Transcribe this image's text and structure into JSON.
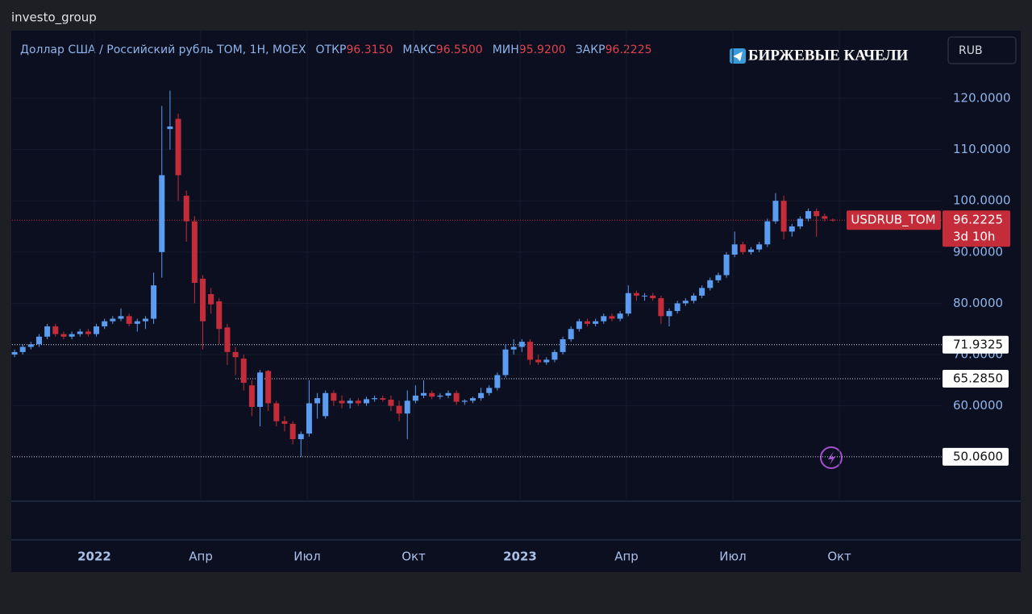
{
  "header": "investo_group",
  "chart_data": {
    "type": "candlestick",
    "title": "Доллар США / Российский рубль TOM, 1H, MOEX",
    "legend_values": {
      "labels": [
        "ОТКР",
        "МАКС",
        "МИН",
        "ЗАКР"
      ],
      "values": [
        96.315,
        96.55,
        95.92,
        96.2225
      ],
      "value_labels": [
        "96.3150",
        "96.5500",
        "95.9200",
        "96.2225"
      ]
    },
    "watermark": "БИРЖЕВЫЕ КАЧЕЛИ",
    "currency": "RUB",
    "up_color": "#5b9cf0",
    "down_color": "#c42c3a",
    "grid": true,
    "ohlc": [
      [
        70,
        71,
        69.5,
        70.5
      ],
      [
        70.5,
        72,
        70,
        71.5
      ],
      [
        71.5,
        72.5,
        71,
        72
      ],
      [
        72,
        74,
        71.5,
        73.5
      ],
      [
        73.5,
        76,
        73,
        75.5
      ],
      [
        75.5,
        76,
        73.5,
        74
      ],
      [
        74,
        74.5,
        73,
        73.5
      ],
      [
        73.5,
        74.5,
        73,
        74
      ],
      [
        74,
        75,
        73.5,
        74.5
      ],
      [
        74.5,
        75,
        73.5,
        74
      ],
      [
        74,
        76,
        73.5,
        75.5
      ],
      [
        75.5,
        77,
        75,
        76.5
      ],
      [
        76.5,
        77.5,
        76,
        77
      ],
      [
        77,
        79,
        76.5,
        77.5
      ],
      [
        77.5,
        78,
        75.5,
        76
      ],
      [
        76,
        77,
        74.5,
        76.5
      ],
      [
        76.5,
        77.5,
        75,
        77
      ],
      [
        77,
        86,
        76,
        83.5
      ],
      [
        90,
        118.5,
        85,
        105
      ],
      [
        114,
        121.5,
        110,
        114.5
      ],
      [
        116,
        117,
        100,
        105
      ],
      [
        101,
        102,
        92,
        96
      ],
      [
        96,
        97,
        80,
        84
      ],
      [
        84.8,
        85.5,
        71,
        76.5
      ],
      [
        81.8,
        83,
        78,
        79.8
      ],
      [
        80.4,
        81,
        72,
        75
      ],
      [
        75.3,
        76,
        68,
        70.5
      ],
      [
        70.5,
        71.5,
        66,
        69.5
      ],
      [
        69.2,
        70,
        63,
        64.5
      ],
      [
        64,
        65,
        58,
        59.8
      ],
      [
        59.8,
        67,
        56,
        66.5
      ],
      [
        66.8,
        67,
        59,
        60.5
      ],
      [
        60.5,
        61,
        56,
        57
      ],
      [
        57,
        58,
        55,
        56.5
      ],
      [
        56.5,
        57,
        52.5,
        53.5
      ],
      [
        53.5,
        55,
        50.06,
        54.5
      ],
      [
        54.6,
        65,
        54,
        60.5
      ],
      [
        60.5,
        62.5,
        57.5,
        61.5
      ],
      [
        58,
        63,
        57.5,
        62.5
      ],
      [
        62.5,
        63,
        60,
        61
      ],
      [
        61,
        62,
        59.5,
        60.5
      ],
      [
        60.5,
        61.5,
        59.5,
        61
      ],
      [
        61,
        61.5,
        60,
        60.5
      ],
      [
        60.5,
        61.8,
        60,
        61.3
      ],
      [
        61.3,
        62,
        60.8,
        61.5
      ],
      [
        61.5,
        62,
        60.8,
        61.2
      ],
      [
        61.2,
        62,
        59,
        60
      ],
      [
        60,
        61,
        57,
        58.5
      ],
      [
        58.5,
        63,
        53.5,
        61
      ],
      [
        61,
        64,
        60.5,
        62
      ],
      [
        62,
        65,
        61.5,
        62.5
      ],
      [
        62.5,
        63,
        61.3,
        61.8
      ],
      [
        61.8,
        62.5,
        61.3,
        62
      ],
      [
        62,
        63,
        61.5,
        62.5
      ],
      [
        62.5,
        63,
        60.2,
        60.8
      ],
      [
        60.8,
        61.3,
        60.2,
        61
      ],
      [
        61,
        61.8,
        60.5,
        61.5
      ],
      [
        61.5,
        63.5,
        61,
        62.5
      ],
      [
        62.5,
        64,
        62,
        63.5
      ],
      [
        63.5,
        66.5,
        63,
        66
      ],
      [
        66,
        72,
        65.5,
        71
      ],
      [
        71,
        73,
        70,
        71.5
      ],
      [
        71.5,
        73,
        70.5,
        72.5
      ],
      [
        72.5,
        73,
        68,
        69
      ],
      [
        69,
        70,
        68,
        68.5
      ],
      [
        68.5,
        69.5,
        68,
        69
      ],
      [
        69,
        71,
        68.5,
        70.5
      ],
      [
        70.5,
        73.5,
        70,
        73
      ],
      [
        73,
        75.5,
        72.5,
        75
      ],
      [
        75,
        77,
        74.5,
        76.5
      ],
      [
        76.5,
        77,
        75.5,
        76
      ],
      [
        76,
        77,
        75.5,
        76.5
      ],
      [
        76.5,
        78,
        76,
        77.5
      ],
      [
        77.5,
        78,
        76.5,
        77
      ],
      [
        77,
        78.5,
        76.5,
        78
      ],
      [
        78,
        83.5,
        77.5,
        82
      ],
      [
        82,
        82.5,
        80.5,
        81.5
      ],
      [
        81.5,
        82,
        80.5,
        81.5
      ],
      [
        81.5,
        82,
        80.5,
        81
      ],
      [
        81,
        81.5,
        76,
        77.5
      ],
      [
        77.5,
        79,
        75.5,
        78.5
      ],
      [
        78.5,
        80.5,
        78,
        80
      ],
      [
        80,
        81,
        79.5,
        80.5
      ],
      [
        80.5,
        82,
        80,
        81.5
      ],
      [
        81.5,
        83.5,
        81,
        83
      ],
      [
        83,
        85,
        82.5,
        84.5
      ],
      [
        84.5,
        86,
        84,
        85.5
      ],
      [
        85.5,
        90,
        85,
        89.5
      ],
      [
        89.5,
        94,
        89,
        91.5
      ],
      [
        91.5,
        92,
        89.5,
        90
      ],
      [
        90,
        91,
        89.5,
        90.5
      ],
      [
        90.5,
        92,
        90,
        91.5
      ],
      [
        91.5,
        96.5,
        91,
        96
      ],
      [
        96,
        101.5,
        95.5,
        100
      ],
      [
        100,
        101,
        92.5,
        94
      ],
      [
        94,
        95.5,
        93,
        95
      ],
      [
        95,
        97,
        94.5,
        96.5
      ],
      [
        96.5,
        98.5,
        96,
        98
      ],
      [
        98,
        98.5,
        93,
        97
      ],
      [
        97,
        97.5,
        96,
        96.5
      ],
      [
        96.315,
        96.55,
        95.92,
        96.2225
      ]
    ],
    "xlim": [
      -0.3,
      113.3
    ],
    "xticks": [
      {
        "value": 9.75,
        "label": "2022"
      },
      {
        "value": 22.76,
        "label": "Апр"
      },
      {
        "value": 35.76,
        "label": "Июл"
      },
      {
        "value": 48.77,
        "label": "Окт"
      },
      {
        "value": 61.77,
        "label": "2023"
      },
      {
        "value": 74.78,
        "label": "Апр"
      },
      {
        "value": 87.78,
        "label": "Июл"
      },
      {
        "value": 100.8,
        "label": "Окт"
      }
    ],
    "ylim": [
      41.4,
      132.1
    ],
    "yticks": [
      {
        "value": 60,
        "label": "60.0000"
      },
      {
        "value": 70,
        "label": "70.0000"
      },
      {
        "value": 80,
        "label": "80.0000"
      },
      {
        "value": 90,
        "label": "90.0000"
      },
      {
        "value": 100,
        "label": "100.0000"
      },
      {
        "value": 110,
        "label": "110.0000"
      },
      {
        "value": 120,
        "label": "120.0000"
      }
    ],
    "levels": {
      "values": [
        71.9325,
        65.285,
        50.06
      ],
      "value_labels": [
        "71.9325",
        "65.2850",
        "50.0600"
      ]
    },
    "last_price": {
      "value": 96.2225,
      "symbol": "USDRUB_TOM",
      "countdown": "3d 10h"
    }
  }
}
